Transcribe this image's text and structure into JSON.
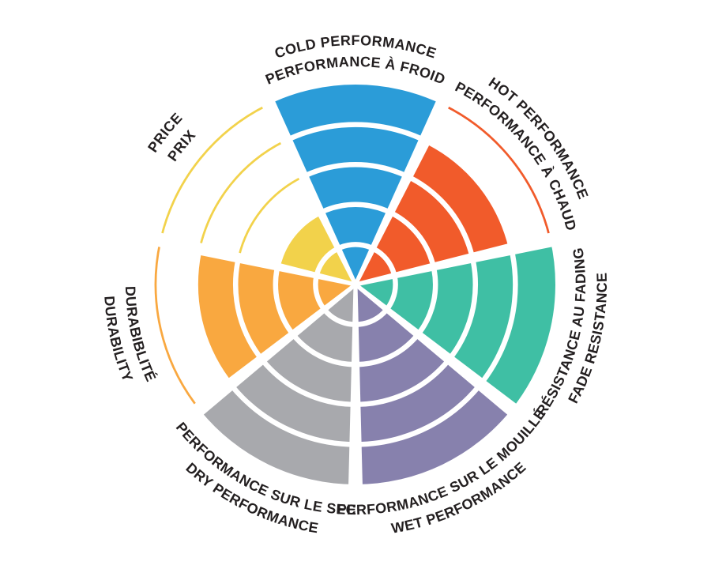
{
  "page": {
    "background_color": "#FFFFFF",
    "label_color": "#231F20",
    "divider_color": "#FFFFFF"
  },
  "chart_data": {
    "type": "radial_wheel",
    "description": "Circular performance rating wheel divided into 7 sectors, each filled from center to its rating level out of 5 rings; unfilled ring boundaries shown as thin arcs in the sector color",
    "max_value": 5,
    "rings": 5,
    "sector_span_deg": 51.43,
    "start_angle_deg": 0,
    "grid": "white concentric ring dividers and tapered white radial dividers",
    "legend_position": "labels curved around wheel",
    "categories": [
      {
        "id": "cold-performance",
        "lines": [
          "COLD PERFORMANCE",
          "PERFORMANCE À FROID"
        ],
        "value": 5,
        "color": "#2B9CD8",
        "label_orientation": "outward"
      },
      {
        "id": "hot-performance",
        "lines": [
          "HOT PERFORMANCE",
          "PERFORMANCE À CHAUD"
        ],
        "value": 4,
        "color": "#F15B2B",
        "label_orientation": "outward"
      },
      {
        "id": "fade-resistance",
        "lines": [
          "RÉSISTANCE AU FADING",
          "FADE RESISTANCE"
        ],
        "value": 5,
        "color": "#3FBFA4",
        "label_orientation": "inward"
      },
      {
        "id": "wet-performance",
        "lines": [
          "PERFORMANCE SUR LE MOUILLÉ",
          "WET PERFORMANCE"
        ],
        "value": 5,
        "color": "#8781AD",
        "label_orientation": "inward"
      },
      {
        "id": "dry-performance",
        "lines": [
          "PERFORMANCE SUR LE SEC",
          "DRY PERFORMANCE"
        ],
        "value": 5,
        "color": "#A8A9AD",
        "label_orientation": "inward"
      },
      {
        "id": "durability",
        "lines": [
          "DURABIBLITÉ",
          "DURABILITY"
        ],
        "value": 4,
        "color": "#F9A840",
        "label_orientation": "inward"
      },
      {
        "id": "price",
        "lines": [
          "PRICE",
          "PRIX"
        ],
        "value": 2,
        "color": "#F2D24B",
        "label_orientation": "outward"
      }
    ]
  }
}
